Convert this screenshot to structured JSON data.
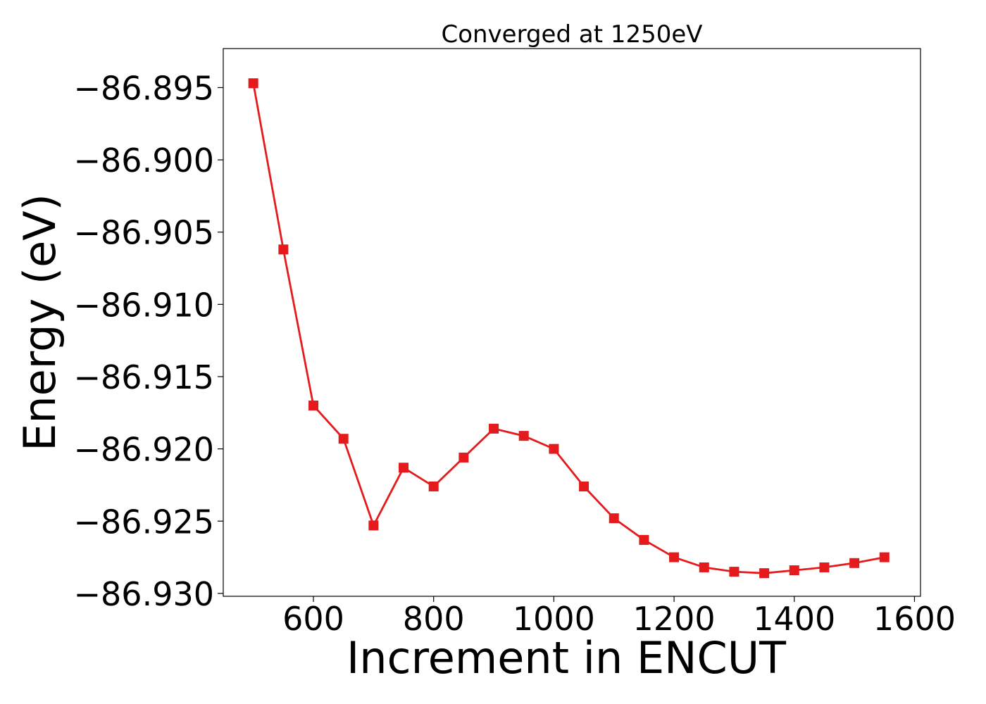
{
  "chart_data": {
    "type": "line",
    "title": "Converged at 1250eV",
    "xlabel": "Increment in ENCUT",
    "ylabel": "Energy (eV)",
    "xlim": [
      450,
      1610
    ],
    "ylim": [
      -86.9302,
      -86.8923
    ],
    "x_ticks": [
      600,
      800,
      1000,
      1200,
      1400,
      1600
    ],
    "x_tick_labels": [
      "600",
      "800",
      "1000",
      "1200",
      "1400",
      "1600"
    ],
    "y_ticks": [
      -86.895,
      -86.9,
      -86.905,
      -86.91,
      -86.915,
      -86.92,
      -86.925,
      -86.93
    ],
    "y_tick_labels": [
      "−86.895",
      "−86.900",
      "−86.905",
      "−86.910",
      "−86.915",
      "−86.920",
      "−86.925",
      "−86.930"
    ],
    "grid": false,
    "series": [
      {
        "color": "#e41a1c",
        "marker": "square",
        "x": [
          500,
          550,
          600,
          650,
          700,
          750,
          800,
          850,
          900,
          950,
          1000,
          1050,
          1100,
          1150,
          1200,
          1250,
          1300,
          1350,
          1400,
          1450,
          1500,
          1550
        ],
        "y": [
          -86.8947,
          -86.9062,
          -86.917,
          -86.9193,
          -86.9253,
          -86.9213,
          -86.9226,
          -86.9206,
          -86.9186,
          -86.9191,
          -86.92,
          -86.9226,
          -86.9248,
          -86.9263,
          -86.9275,
          -86.9282,
          -86.9285,
          -86.9286,
          -86.9284,
          -86.9282,
          -86.9279,
          -86.9275
        ]
      }
    ]
  }
}
